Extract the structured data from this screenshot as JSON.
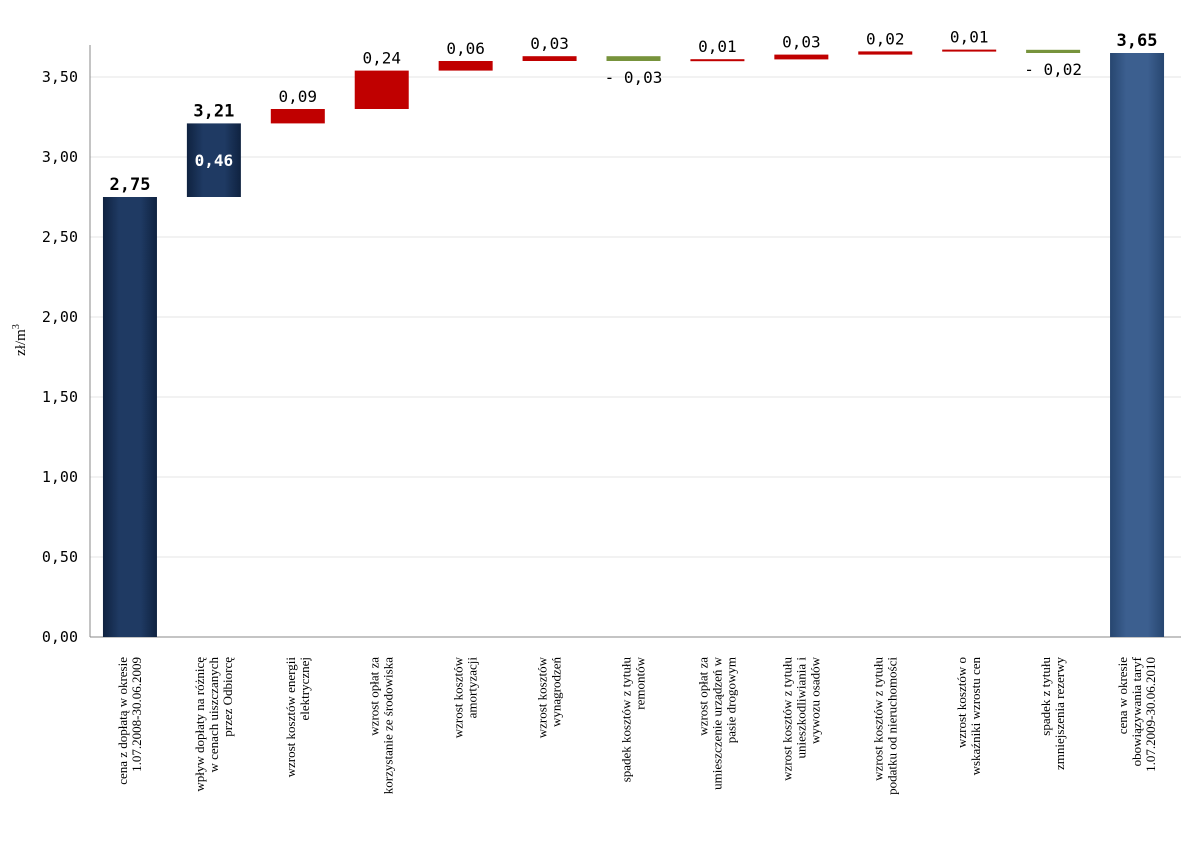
{
  "colors": {
    "total_dark": "#1f3a63",
    "total_final": "#3c5f8f",
    "increase": "#c00000",
    "decrease": "#77933c",
    "grid": "#e6e6e6",
    "axis": "#888888"
  },
  "chart_data": {
    "type": "waterfall",
    "ylabel": "zł/m",
    "ylabel_superscript": "3",
    "ylim": [
      0,
      3.7
    ],
    "yticks": [
      {
        "value": 0.0,
        "label": "0,00"
      },
      {
        "value": 0.5,
        "label": "0,50"
      },
      {
        "value": 1.0,
        "label": "1,00"
      },
      {
        "value": 1.5,
        "label": "1,50"
      },
      {
        "value": 2.0,
        "label": "2,00"
      },
      {
        "value": 2.5,
        "label": "2,50"
      },
      {
        "value": 3.0,
        "label": "3,00"
      },
      {
        "value": 3.5,
        "label": "3,50"
      }
    ],
    "grid": true,
    "steps": [
      {
        "kind": "total",
        "start": 0,
        "end": 2.75,
        "value_label": "2,75",
        "category_lines": [
          "cena z dopłatą w okresie",
          "1.07.2008-30.06.2009"
        ]
      },
      {
        "kind": "total",
        "start": 2.75,
        "end": 3.21,
        "value_label": "3,21",
        "inside_label": "0,46",
        "category_lines": [
          "wpływ dopłaty na różnicę",
          "w cenach uiszczanych",
          "przez Odbiorcę"
        ]
      },
      {
        "kind": "increase",
        "start": 3.21,
        "end": 3.3,
        "value_label": "0,09",
        "category_lines": [
          "wzrost kosztów energii",
          "elektrycznej"
        ]
      },
      {
        "kind": "increase",
        "start": 3.3,
        "end": 3.54,
        "value_label": "0,24",
        "category_lines": [
          "wzrost opłat za",
          "korzystanie ze środowiska"
        ]
      },
      {
        "kind": "increase",
        "start": 3.54,
        "end": 3.6,
        "value_label": "0,06",
        "category_lines": [
          "wzrost kosztów",
          "amortyzacji"
        ]
      },
      {
        "kind": "increase",
        "start": 3.6,
        "end": 3.63,
        "value_label": "0,03",
        "category_lines": [
          "wzrost kosztów",
          "wynagrodzeń"
        ]
      },
      {
        "kind": "decrease",
        "start": 3.63,
        "end": 3.6,
        "value_label": "- 0,03",
        "category_lines": [
          "spadek kosztów z tytułu",
          "remontów"
        ]
      },
      {
        "kind": "increase",
        "start": 3.6,
        "end": 3.61,
        "value_label": "0,01",
        "category_lines": [
          "wzrost opłat za",
          "umieszczenie urządzeń w",
          "pasie drogowym"
        ]
      },
      {
        "kind": "increase",
        "start": 3.61,
        "end": 3.64,
        "value_label": "0,03",
        "category_lines": [
          "wzrost kosztów z tytułu",
          "unieszkodliwiania i",
          "wywozu osadów"
        ]
      },
      {
        "kind": "increase",
        "start": 3.64,
        "end": 3.66,
        "value_label": "0,02",
        "category_lines": [
          "wzrost kosztów z tytułu",
          "podatku od nieruchomości"
        ]
      },
      {
        "kind": "increase",
        "start": 3.66,
        "end": 3.67,
        "value_label": "0,01",
        "category_lines": [
          "wzrost kosztów o",
          "wskaźniki wzrostu cen"
        ]
      },
      {
        "kind": "decrease",
        "start": 3.67,
        "end": 3.65,
        "value_label": "- 0,02",
        "category_lines": [
          "spadek z tytułu",
          "zmniejszenia rezerwy"
        ]
      },
      {
        "kind": "final",
        "start": 0,
        "end": 3.65,
        "value_label": "3,65",
        "category_lines": [
          "cena w okresie",
          "obowiązywania taryf",
          "1.07.2009-30.06.2010"
        ]
      }
    ]
  }
}
